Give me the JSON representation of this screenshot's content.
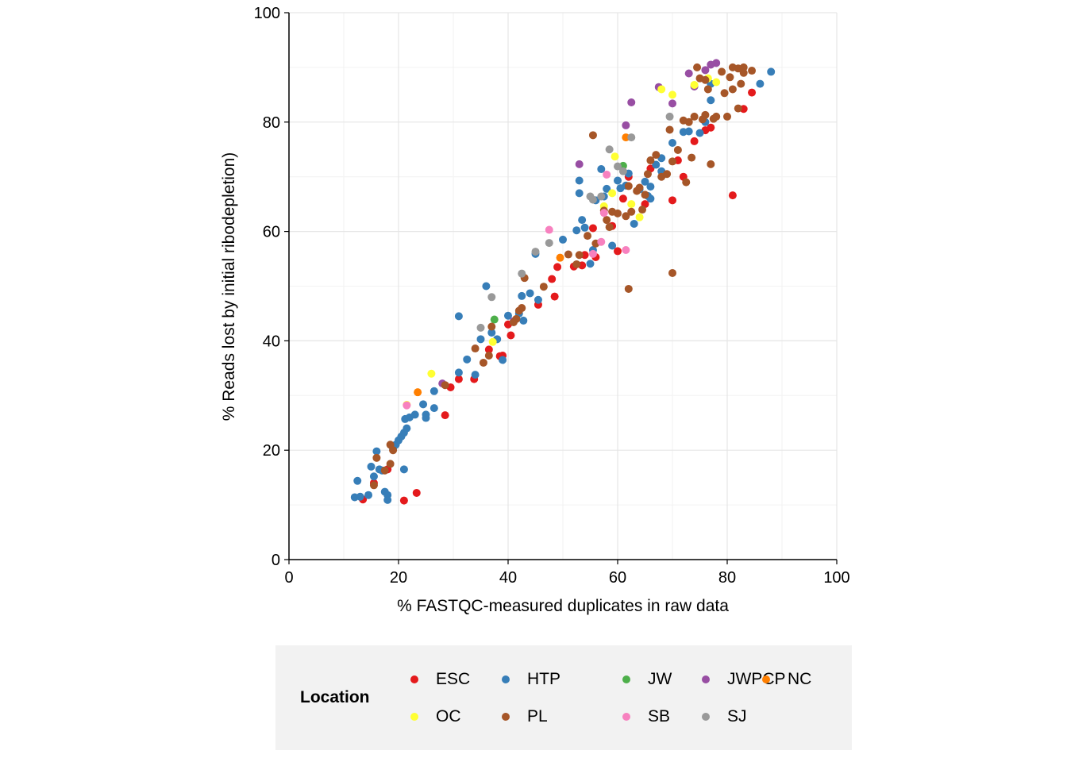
{
  "chart_data": {
    "type": "scatter",
    "xlabel": "% FASTQC-measured duplicates in raw data",
    "ylabel": "% Reads lost by initial ribodepletion)",
    "xlim": [
      0,
      100
    ],
    "ylim": [
      0,
      100
    ],
    "xticks": [
      "0",
      "20",
      "40",
      "60",
      "80",
      "100"
    ],
    "yticks": [
      "0",
      "20",
      "40",
      "60",
      "80",
      "100"
    ],
    "grid": true,
    "legend": {
      "title": "Location",
      "placement": "bottom"
    },
    "series": [
      {
        "name": "ESC",
        "color": "#e41a1c",
        "points": [
          [
            13.5,
            11
          ],
          [
            15.5,
            14
          ],
          [
            18,
            16.5
          ],
          [
            21,
            10.8
          ],
          [
            23.3,
            12.2
          ],
          [
            28.5,
            26.4
          ],
          [
            29.5,
            31.5
          ],
          [
            31,
            33
          ],
          [
            33.8,
            33
          ],
          [
            36.5,
            38.4
          ],
          [
            38.5,
            37.2
          ],
          [
            39,
            37.3
          ],
          [
            40,
            43
          ],
          [
            40.5,
            41
          ],
          [
            45.5,
            46.6
          ],
          [
            48,
            51.3
          ],
          [
            48.5,
            48.1
          ],
          [
            49,
            53.5
          ],
          [
            52,
            53.6
          ],
          [
            53.5,
            53.8
          ],
          [
            54,
            55.7
          ],
          [
            55.5,
            60.6
          ],
          [
            56,
            55.3
          ],
          [
            59,
            61
          ],
          [
            60,
            56.4
          ],
          [
            61,
            66
          ],
          [
            62,
            70
          ],
          [
            65,
            65
          ],
          [
            66,
            71.5
          ],
          [
            70,
            65.7
          ],
          [
            71,
            73
          ],
          [
            72,
            70
          ],
          [
            74,
            76.5
          ],
          [
            76,
            78.5
          ],
          [
            77,
            79
          ],
          [
            81,
            66.6
          ],
          [
            83,
            82.4
          ],
          [
            84.5,
            85.4
          ]
        ]
      },
      {
        "name": "HTP",
        "color": "#377eb8",
        "points": [
          [
            12,
            11.4
          ],
          [
            12.5,
            14.4
          ],
          [
            13,
            11.5
          ],
          [
            14.5,
            11.8
          ],
          [
            15,
            17
          ],
          [
            15.5,
            15.2
          ],
          [
            16,
            19.8
          ],
          [
            16.5,
            16.5
          ],
          [
            17,
            16.3
          ],
          [
            17.5,
            12.4
          ],
          [
            18,
            11.8
          ],
          [
            18,
            10.9
          ],
          [
            19,
            20.2
          ],
          [
            19.5,
            21
          ],
          [
            20,
            21.8
          ],
          [
            20.5,
            22.5
          ],
          [
            21,
            23.2
          ],
          [
            21,
            16.5
          ],
          [
            21.2,
            25.7
          ],
          [
            21.5,
            24
          ],
          [
            22,
            26
          ],
          [
            23,
            26.5
          ],
          [
            24.5,
            28.4
          ],
          [
            25,
            26.5
          ],
          [
            25,
            25.9
          ],
          [
            26.5,
            30.8
          ],
          [
            26.5,
            27.7
          ],
          [
            31,
            34.2
          ],
          [
            31,
            44.5
          ],
          [
            32.5,
            36.6
          ],
          [
            34,
            33.8
          ],
          [
            35,
            40.3
          ],
          [
            36,
            50
          ],
          [
            37,
            41.5
          ],
          [
            38,
            40.3
          ],
          [
            39,
            36.5
          ],
          [
            40,
            44.6
          ],
          [
            42,
            45
          ],
          [
            42.5,
            48.2
          ],
          [
            42.8,
            43.7
          ],
          [
            44,
            48.7
          ],
          [
            45,
            55.9
          ],
          [
            45.5,
            47.5
          ],
          [
            50,
            58.5
          ],
          [
            52.5,
            60.2
          ],
          [
            53,
            67
          ],
          [
            53,
            69.3
          ],
          [
            53.5,
            62.1
          ],
          [
            54,
            60.7
          ],
          [
            55,
            54.1
          ],
          [
            55.5,
            56.6
          ],
          [
            56,
            65.7
          ],
          [
            57,
            71.4
          ],
          [
            57.5,
            66.4
          ],
          [
            58,
            67.8
          ],
          [
            59,
            57.4
          ],
          [
            60,
            69.3
          ],
          [
            60.5,
            67.9
          ],
          [
            61.5,
            68.4
          ],
          [
            62,
            70.6
          ],
          [
            63,
            61.4
          ],
          [
            64,
            67.7
          ],
          [
            65,
            69.1
          ],
          [
            65.5,
            66.5
          ],
          [
            66,
            68.2
          ],
          [
            66,
            66
          ],
          [
            67,
            72.2
          ],
          [
            68,
            73.4
          ],
          [
            68,
            71
          ],
          [
            70,
            76.2
          ],
          [
            72,
            78.2
          ],
          [
            73,
            78.3
          ],
          [
            75,
            78
          ],
          [
            76,
            80
          ],
          [
            77,
            84
          ],
          [
            77,
            87
          ],
          [
            86,
            87
          ],
          [
            88,
            89.2
          ]
        ]
      },
      {
        "name": "JW",
        "color": "#4daf4a",
        "points": [
          [
            37.5,
            43.9
          ],
          [
            61,
            72
          ]
        ]
      },
      {
        "name": "JWPCP",
        "color": "#984ea3",
        "points": [
          [
            28,
            32.2
          ],
          [
            41,
            43.6
          ],
          [
            53,
            72.3
          ],
          [
            61.5,
            79.4
          ],
          [
            62.5,
            83.6
          ],
          [
            67.5,
            86.4
          ],
          [
            70,
            83.4
          ],
          [
            73,
            88.9
          ],
          [
            74,
            86.5
          ],
          [
            76,
            89.5
          ],
          [
            77,
            90.5
          ],
          [
            78,
            90.8
          ]
        ]
      },
      {
        "name": "NC",
        "color": "#ff7f00",
        "points": [
          [
            23.5,
            30.6
          ],
          [
            49.5,
            55.2
          ],
          [
            61.5,
            77.2
          ]
        ]
      },
      {
        "name": "OC",
        "color": "#ffff33",
        "points": [
          [
            21.5,
            28.3
          ],
          [
            26,
            34
          ],
          [
            37.2,
            39.8
          ],
          [
            57.5,
            64.6
          ],
          [
            59,
            67
          ],
          [
            59.5,
            73.7
          ],
          [
            62.5,
            65
          ],
          [
            64,
            62.6
          ],
          [
            68,
            86
          ],
          [
            70,
            85
          ],
          [
            74,
            86.8
          ],
          [
            76.5,
            88
          ],
          [
            78,
            87.3
          ]
        ]
      },
      {
        "name": "PL",
        "color": "#a65628",
        "points": [
          [
            15.5,
            13.6
          ],
          [
            16,
            18.6
          ],
          [
            17.5,
            16.3
          ],
          [
            18.5,
            17.5
          ],
          [
            18.5,
            21
          ],
          [
            19,
            20
          ],
          [
            28.5,
            31.9
          ],
          [
            34,
            38.6
          ],
          [
            35.5,
            36
          ],
          [
            36.5,
            37.3
          ],
          [
            37,
            42.6
          ],
          [
            41,
            43.4
          ],
          [
            41.5,
            44
          ],
          [
            42,
            45.5
          ],
          [
            42.5,
            46
          ],
          [
            43,
            51.5
          ],
          [
            46.5,
            49.9
          ],
          [
            51,
            55.8
          ],
          [
            52.5,
            54
          ],
          [
            53,
            55.7
          ],
          [
            54.5,
            59.2
          ],
          [
            55.5,
            77.6
          ],
          [
            56,
            57.8
          ],
          [
            57.5,
            63.8
          ],
          [
            58,
            62.1
          ],
          [
            58.5,
            60.8
          ],
          [
            59,
            63.6
          ],
          [
            60,
            63.3
          ],
          [
            61.5,
            62.8
          ],
          [
            62,
            49.5
          ],
          [
            62,
            68.3
          ],
          [
            62.5,
            63.6
          ],
          [
            63.5,
            67.4
          ],
          [
            64,
            68
          ],
          [
            64.5,
            64
          ],
          [
            65,
            66.7
          ],
          [
            65.5,
            70.5
          ],
          [
            66,
            73
          ],
          [
            67,
            74
          ],
          [
            68,
            70
          ],
          [
            69,
            70.5
          ],
          [
            69.5,
            78.6
          ],
          [
            70,
            52.4
          ],
          [
            70,
            72.8
          ],
          [
            71,
            74.9
          ],
          [
            72,
            80.3
          ],
          [
            72.5,
            69
          ],
          [
            73,
            80
          ],
          [
            73.5,
            73.5
          ],
          [
            74,
            81
          ],
          [
            74.5,
            90
          ],
          [
            75,
            88
          ],
          [
            75.5,
            80.5
          ],
          [
            76,
            81.3
          ],
          [
            76,
            87.7
          ],
          [
            76.5,
            86
          ],
          [
            77,
            72.3
          ],
          [
            77.5,
            80.6
          ],
          [
            78,
            81
          ],
          [
            79,
            89.2
          ],
          [
            79.5,
            85.3
          ],
          [
            80,
            81
          ],
          [
            80.5,
            88.2
          ],
          [
            81,
            86
          ],
          [
            81,
            90
          ],
          [
            82,
            82.5
          ],
          [
            82,
            89.8
          ],
          [
            82.5,
            87
          ],
          [
            83,
            89
          ],
          [
            83,
            90
          ],
          [
            84.5,
            89.4
          ]
        ]
      },
      {
        "name": "SB",
        "color": "#f781bf",
        "points": [
          [
            21.5,
            28.2
          ],
          [
            47.5,
            60.3
          ],
          [
            55.5,
            55.9
          ],
          [
            57,
            58.1
          ],
          [
            57.5,
            63.4
          ],
          [
            58,
            70.4
          ],
          [
            61.5,
            56.6
          ]
        ]
      },
      {
        "name": "SJ",
        "color": "#999999",
        "points": [
          [
            35,
            42.4
          ],
          [
            37,
            48
          ],
          [
            42.5,
            52.3
          ],
          [
            45,
            56.3
          ],
          [
            47.5,
            57.9
          ],
          [
            55,
            66.4
          ],
          [
            55.5,
            65.8
          ],
          [
            57,
            66.4
          ],
          [
            58.5,
            75
          ],
          [
            60,
            71.9
          ],
          [
            61,
            71
          ],
          [
            62.5,
            77.2
          ],
          [
            69.5,
            81
          ]
        ]
      }
    ]
  }
}
